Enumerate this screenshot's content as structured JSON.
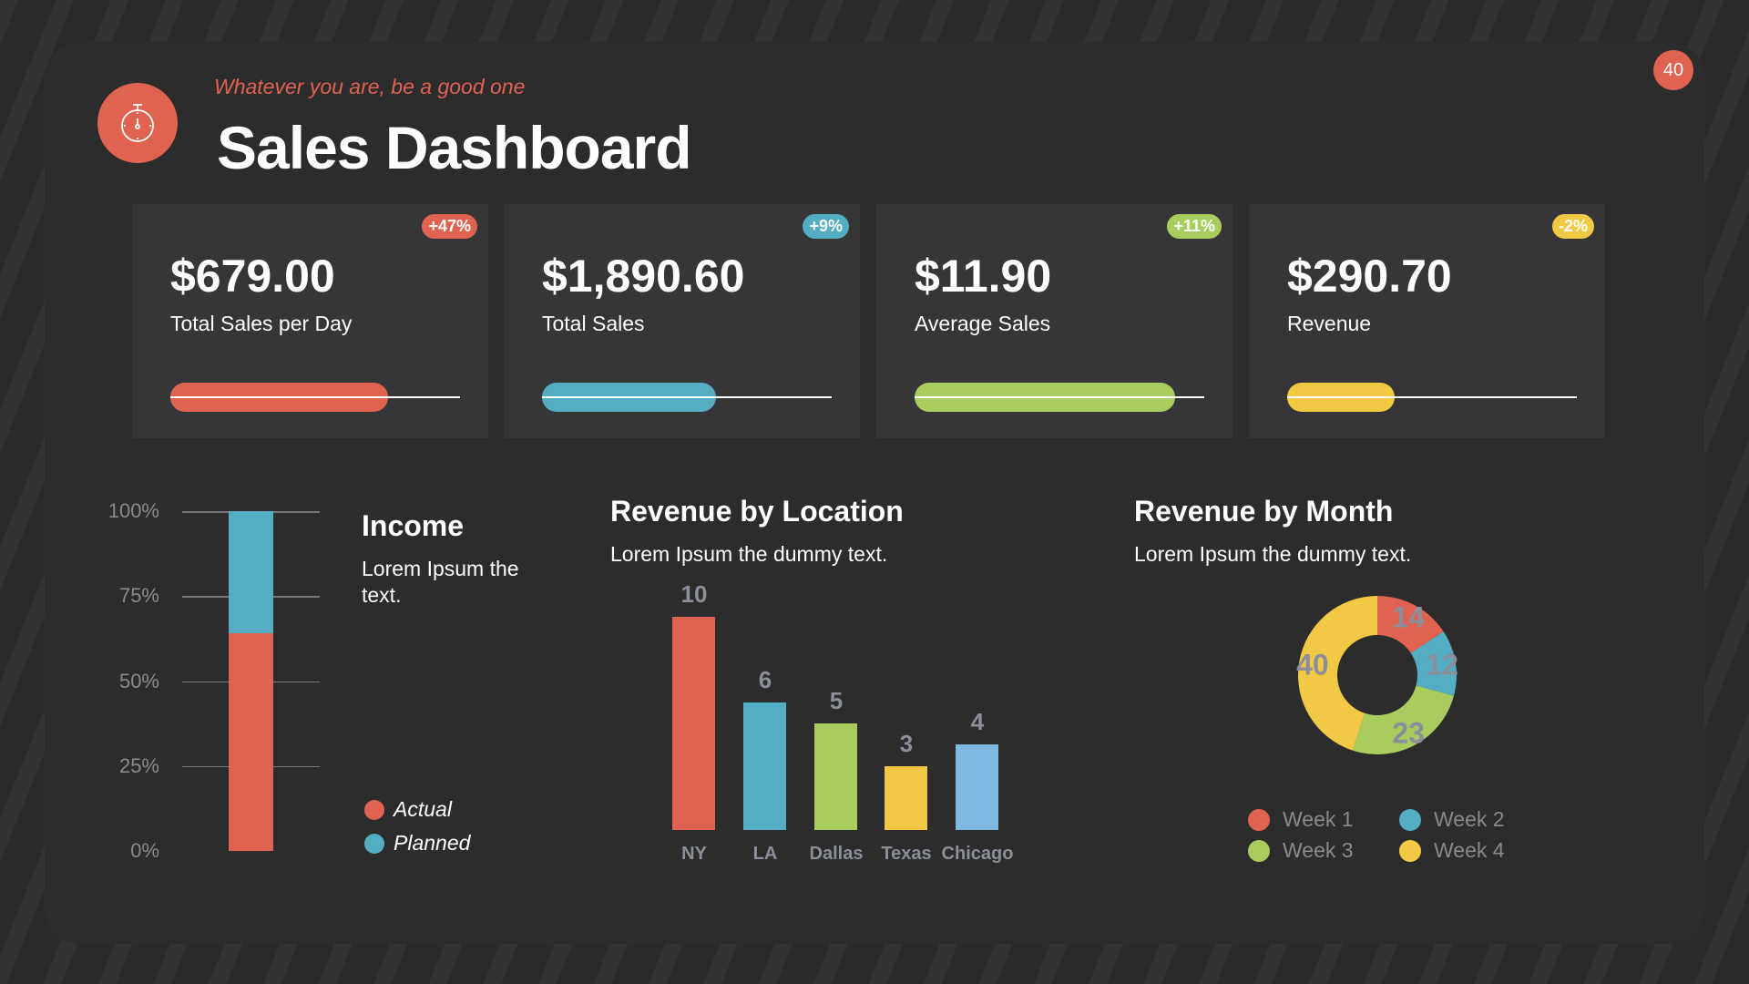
{
  "page_number": "40",
  "header": {
    "quote": "Whatever you are, be a good one",
    "title": "Sales Dashboard",
    "icon": "stopwatch-icon"
  },
  "cards": [
    {
      "value": "$679.00",
      "label": "Total Sales per Day",
      "badge": "+47%",
      "color": "#e06352",
      "progress": 0.75
    },
    {
      "value": "$1,890.60",
      "label": "Total Sales",
      "badge": "+9%",
      "color": "#54adc2",
      "progress": 0.6
    },
    {
      "value": "$11.90",
      "label": "Average Sales",
      "badge": "+11%",
      "color": "#a8cd5e",
      "progress": 0.9
    },
    {
      "value": "$290.70",
      "label": "Revenue",
      "badge": "-2%",
      "color": "#f2c945",
      "progress": 0.37
    }
  ],
  "income": {
    "title": "Income",
    "text": "Lorem Ipsum the text.",
    "legend": {
      "actual": "Actual",
      "planned": "Planned"
    }
  },
  "location": {
    "title": "Revenue by Location",
    "text": "Lorem Ipsum the dummy text."
  },
  "month": {
    "title": "Revenue by Month",
    "text": "Lorem Ipsum the dummy text."
  },
  "chart_data": [
    {
      "type": "bar",
      "title": "Income",
      "categories": [
        "Income"
      ],
      "series": [
        {
          "name": "Actual",
          "values": [
            64
          ],
          "color": "#e06352"
        },
        {
          "name": "Planned",
          "values": [
            100
          ],
          "color": "#54adc2"
        }
      ],
      "yticks": [
        "0%",
        "25%",
        "50%",
        "75%",
        "100%"
      ],
      "ylim": [
        0,
        100
      ],
      "grid": true,
      "legend": "right"
    },
    {
      "type": "bar",
      "title": "Revenue by Location",
      "categories": [
        "NY",
        "LA",
        "Dallas",
        "Texas",
        "Chicago"
      ],
      "values": [
        10,
        6,
        5,
        3,
        4
      ],
      "colors": [
        "#e06352",
        "#54adc2",
        "#a8cd5e",
        "#f2c945",
        "#7fb8e0"
      ],
      "ylim": [
        0,
        10
      ]
    },
    {
      "type": "pie",
      "title": "Revenue by Month",
      "labels": [
        "Week 1",
        "Week 2",
        "Week 3",
        "Week 4"
      ],
      "values": [
        14,
        12,
        23,
        40
      ],
      "colors": [
        "#e06352",
        "#54adc2",
        "#a8cd5e",
        "#f2c945"
      ],
      "donut": true,
      "legend": "bottom"
    }
  ]
}
